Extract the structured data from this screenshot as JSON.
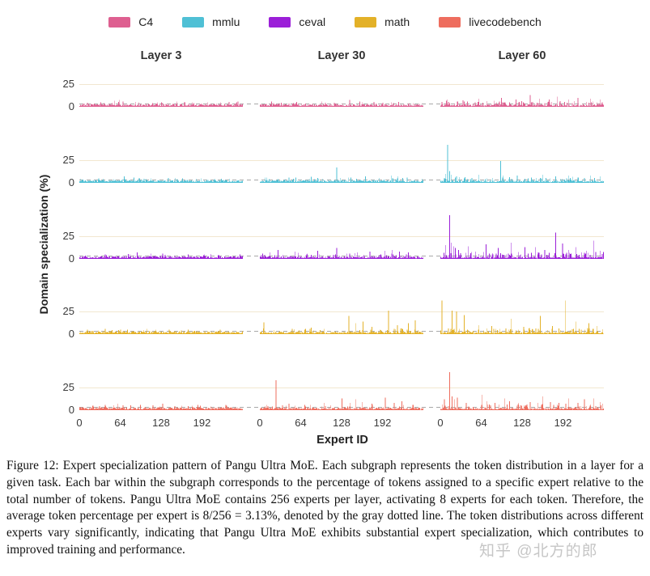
{
  "chart_data": {
    "type": "bar",
    "title": "",
    "xlabel": "Expert ID",
    "ylabel": "Domain specialization (%)",
    "columns": [
      "Layer 3",
      "Layer 30",
      "Layer 60"
    ],
    "x_ticks": [
      "0",
      "64",
      "128",
      "192"
    ],
    "y_ticks": [
      "25",
      "0"
    ],
    "n_experts": 256,
    "ylim": [
      0,
      50
    ],
    "avg_line_pct": 3.13,
    "grid_color": "#f2e7d0",
    "avg_line_color": "#a8a8a8",
    "legend_position": "top",
    "rows": [
      {
        "task": "C4",
        "color": "#de5f90",
        "panels": [
          {
            "layer": "Layer 3",
            "seed": 101,
            "base": 2.1,
            "p_mid": 0.1,
            "mid": 3.0,
            "spikes": [
              [
                55,
                6.5
              ],
              [
                62,
                7.5
              ],
              [
                68,
                6
              ],
              [
                88,
                5.5
              ],
              [
                122,
                5
              ],
              [
                152,
                6
              ],
              [
                200,
                5
              ]
            ]
          },
          {
            "layer": "Layer 30",
            "seed": 102,
            "base": 2.0,
            "p_mid": 0.1,
            "mid": 3.0,
            "spikes": [
              [
                18,
                6
              ],
              [
                57,
                5.5
              ],
              [
                96,
                6
              ],
              [
                140,
                7.5
              ],
              [
                156,
                6
              ],
              [
                178,
                5.5
              ],
              [
                205,
                5
              ]
            ]
          },
          {
            "layer": "Layer 60",
            "seed": 103,
            "base": 1.8,
            "p_mid": 0.18,
            "mid": 4.5,
            "spikes": [
              [
                10,
                8
              ],
              [
                35,
                7
              ],
              [
                60,
                9
              ],
              [
                95,
                10
              ],
              [
                118,
                8
              ],
              [
                140,
                13
              ],
              [
                155,
                9
              ],
              [
                170,
                8
              ],
              [
                183,
                11
              ],
              [
                200,
                8
              ],
              [
                215,
                10
              ],
              [
                235,
                9
              ],
              [
                250,
                8
              ]
            ]
          }
        ]
      },
      {
        "task": "mmlu",
        "color": "#4fc0d5",
        "panels": [
          {
            "layer": "Layer 3",
            "seed": 201,
            "base": 2.1,
            "p_mid": 0.1,
            "mid": 3.0,
            "spikes": [
              [
                30,
                5
              ],
              [
                70,
                7
              ],
              [
                85,
                6
              ],
              [
                112,
                5
              ],
              [
                150,
                5.5
              ],
              [
                190,
                5
              ]
            ]
          },
          {
            "layer": "Layer 30",
            "seed": 202,
            "base": 2.0,
            "p_mid": 0.1,
            "mid": 3.5,
            "spikes": [
              [
                10,
                6
              ],
              [
                45,
                6
              ],
              [
                80,
                6.5
              ],
              [
                120,
                17
              ],
              [
                142,
                6
              ],
              [
                165,
                7
              ],
              [
                186,
                5.5
              ],
              [
                205,
                8
              ],
              [
                216,
                7
              ],
              [
                230,
                6
              ]
            ]
          },
          {
            "layer": "Layer 60",
            "seed": 203,
            "base": 1.7,
            "p_mid": 0.16,
            "mid": 4.5,
            "spikes": [
              [
                8,
                10
              ],
              [
                11,
                42
              ],
              [
                14,
                13
              ],
              [
                17,
                9
              ],
              [
                25,
                7
              ],
              [
                60,
                9
              ],
              [
                94,
                24
              ],
              [
                98,
                8
              ],
              [
                120,
                8
              ],
              [
                142,
                6
              ],
              [
                160,
                9
              ],
              [
                180,
                7
              ],
              [
                200,
                8
              ],
              [
                216,
                6
              ],
              [
                235,
                8
              ],
              [
                250,
                7
              ]
            ]
          }
        ]
      },
      {
        "task": "ceval",
        "color": "#9b1fd8",
        "panels": [
          {
            "layer": "Layer 3",
            "seed": 301,
            "base": 2.0,
            "p_mid": 0.1,
            "mid": 3.2,
            "spikes": [
              [
                40,
                5
              ],
              [
                90,
                7
              ],
              [
                112,
                6
              ],
              [
                130,
                6
              ],
              [
                170,
                5
              ],
              [
                205,
                5.5
              ]
            ]
          },
          {
            "layer": "Layer 30",
            "seed": 302,
            "base": 1.9,
            "p_mid": 0.14,
            "mid": 4.0,
            "spikes": [
              [
                15,
                7
              ],
              [
                28,
                10
              ],
              [
                55,
                8
              ],
              [
                90,
                9
              ],
              [
                120,
                12
              ],
              [
                136,
                6
              ],
              [
                152,
                7
              ],
              [
                172,
                8
              ],
              [
                195,
                9
              ],
              [
                207,
                10
              ],
              [
                218,
                8
              ],
              [
                232,
                7
              ]
            ]
          },
          {
            "layer": "Layer 60",
            "seed": 303,
            "base": 1.5,
            "p_mid": 0.25,
            "mid": 6.0,
            "spikes": [
              [
                8,
                15
              ],
              [
                14,
                48
              ],
              [
                17,
                18
              ],
              [
                20,
                14
              ],
              [
                23,
                12
              ],
              [
                28,
                10
              ],
              [
                43,
                14
              ],
              [
                55,
                8
              ],
              [
                71,
                16
              ],
              [
                90,
                12
              ],
              [
                110,
                18
              ],
              [
                132,
                13
              ],
              [
                148,
                13
              ],
              [
                163,
                10
              ],
              [
                180,
                29
              ],
              [
                191,
                17
              ],
              [
                200,
                10
              ],
              [
                212,
                13
              ],
              [
                228,
                9
              ],
              [
                240,
                20
              ],
              [
                250,
                9
              ]
            ]
          }
        ]
      },
      {
        "task": "math",
        "color": "#e3b128",
        "panels": [
          {
            "layer": "Layer 3",
            "seed": 401,
            "base": 2.1,
            "p_mid": 0.09,
            "mid": 3.0,
            "spikes": [
              [
                12,
                5
              ],
              [
                40,
                6
              ],
              [
                75,
                5
              ],
              [
                105,
                6
              ],
              [
                140,
                5
              ],
              [
                170,
                5
              ],
              [
                220,
                5
              ]
            ]
          },
          {
            "layer": "Layer 30",
            "seed": 402,
            "base": 1.9,
            "p_mid": 0.13,
            "mid": 4.0,
            "spikes": [
              [
                6,
                13
              ],
              [
                50,
                6
              ],
              [
                80,
                7
              ],
              [
                100,
                6
              ],
              [
                139,
                20
              ],
              [
                150,
                12
              ],
              [
                161,
                14
              ],
              [
                175,
                8
              ],
              [
                201,
                26
              ],
              [
                215,
                10
              ],
              [
                232,
                12
              ],
              [
                243,
                15
              ]
            ]
          },
          {
            "layer": "Layer 60",
            "seed": 403,
            "base": 1.7,
            "p_mid": 0.22,
            "mid": 5.0,
            "spikes": [
              [
                2,
                37
              ],
              [
                18,
                26
              ],
              [
                25,
                25
              ],
              [
                37,
                21
              ],
              [
                60,
                10
              ],
              [
                80,
                9
              ],
              [
                110,
                17
              ],
              [
                130,
                8
              ],
              [
                156,
                20
              ],
              [
                175,
                9
              ],
              [
                195,
                37
              ],
              [
                212,
                14
              ],
              [
                232,
                12
              ],
              [
                245,
                9
              ]
            ]
          }
        ]
      },
      {
        "task": "livecodebench",
        "color": "#ee6d5e",
        "panels": [
          {
            "layer": "Layer 3",
            "seed": 501,
            "base": 2.2,
            "p_mid": 0.09,
            "mid": 3.0,
            "spikes": [
              [
                20,
                5
              ],
              [
                60,
                7
              ],
              [
                95,
                6
              ],
              [
                130,
                7
              ],
              [
                160,
                5
              ],
              [
                185,
                6
              ],
              [
                230,
                5
              ]
            ]
          },
          {
            "layer": "Layer 30",
            "seed": 502,
            "base": 1.9,
            "p_mid": 0.13,
            "mid": 4.0,
            "spikes": [
              [
                10,
                6
              ],
              [
                25,
                33
              ],
              [
                45,
                7
              ],
              [
                70,
                6
              ],
              [
                100,
                8
              ],
              [
                128,
                13
              ],
              [
                141,
                8
              ],
              [
                150,
                12
              ],
              [
                160,
                9
              ],
              [
                175,
                7
              ],
              [
                196,
                14
              ],
              [
                210,
                8
              ],
              [
                222,
                10
              ],
              [
                240,
                6
              ]
            ]
          },
          {
            "layer": "Layer 60",
            "seed": 503,
            "base": 1.8,
            "p_mid": 0.2,
            "mid": 5.0,
            "spikes": [
              [
                6,
                12
              ],
              [
                14,
                42
              ],
              [
                18,
                15
              ],
              [
                22,
                12
              ],
              [
                26,
                14
              ],
              [
                40,
                8
              ],
              [
                65,
                17
              ],
              [
                72,
                10
              ],
              [
                85,
                8
              ],
              [
                100,
                13
              ],
              [
                108,
                10
              ],
              [
                122,
                8
              ],
              [
                140,
                9
              ],
              [
                152,
                8
              ],
              [
                160,
                15
              ],
              [
                172,
                9
              ],
              [
                185,
                8
              ],
              [
                200,
                13
              ],
              [
                215,
                8
              ],
              [
                225,
                12
              ],
              [
                240,
                13
              ],
              [
                250,
                9
              ]
            ]
          }
        ]
      }
    ]
  },
  "caption": {
    "text": "Figure 12: Expert specialization pattern of Pangu Ultra MoE. Each subgraph represents the token distribution in a layer for a given task. Each bar within the subgraph corresponds to the percentage of tokens assigned to a specific expert relative to the total number of tokens. Pangu Ultra MoE contains 256 experts per layer, activating 8 experts for each token. Therefore, the average token percentage per expert is 8/256 = 3.13%, denoted by the gray dotted line. The token distributions across different experts vary significantly, indicating that Pangu Ultra MoE exhibits substantial expert specialization, which contributes to improved training and performance."
  },
  "watermark": {
    "text": "知乎 @北方的郎"
  }
}
